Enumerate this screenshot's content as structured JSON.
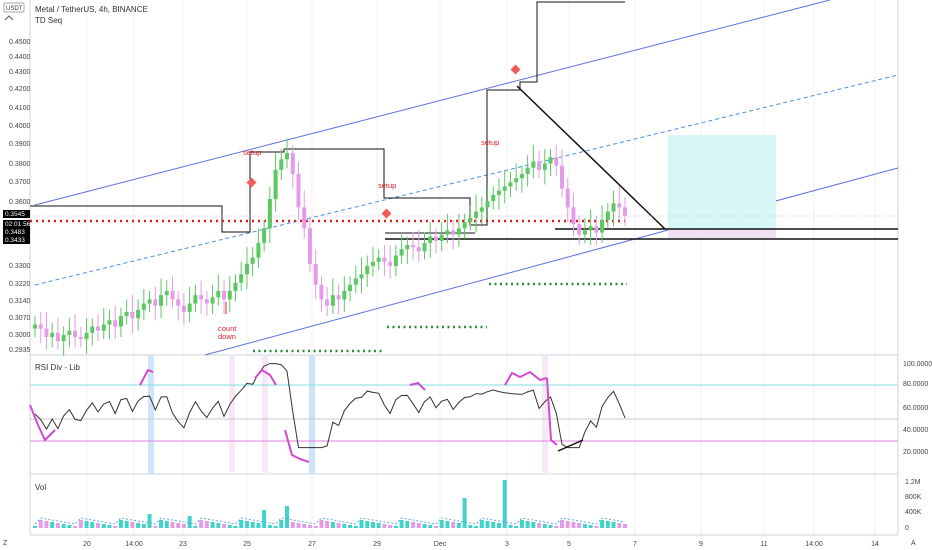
{
  "header": {
    "currency_badge": "USDT",
    "title": "Metal / TetherUS, 4h, BINANCE",
    "indicator": "TD Seq",
    "chevron_icon": "chevron-up-icon"
  },
  "price_axis": {
    "ticks": [
      "0.4500",
      "0.4400",
      "0.4300",
      "0.4200",
      "0.4100",
      "0.4000",
      "0.3900",
      "0.3800",
      "0.3700",
      "0.3600",
      "0.3300",
      "0.3220",
      "0.3140",
      "0.3070",
      "0.3000",
      "0.2935"
    ],
    "tags": [
      {
        "label": "0.3545",
        "color": "#000000"
      },
      {
        "label": "02:01:56",
        "color": "#000000"
      },
      {
        "label": "0.3483",
        "color": "#000000"
      },
      {
        "label": "0.3433",
        "color": "#000000"
      }
    ]
  },
  "rsi_pane": {
    "label": "RSI Div - Lib",
    "ticks": [
      "100.0000",
      "80.0000",
      "60.0000",
      "40.0000",
      "20.0000"
    ],
    "upper_band": 80,
    "lower_band": 30,
    "mid": 50
  },
  "vol_pane": {
    "label": "Vol",
    "ticks": [
      "1.2M",
      "800K",
      "400K",
      "0"
    ]
  },
  "time_axis": {
    "ticks": [
      "20",
      "14:00",
      "23",
      "25",
      "27",
      "29",
      "Dec",
      "3",
      "5",
      "7",
      "9",
      "11",
      "14:00",
      "14"
    ],
    "left_icon": "zoom-icon",
    "right_label": "A"
  },
  "annotations": {
    "setup_labels": [
      "setup",
      "setup",
      "setup"
    ],
    "countdown": "count down"
  },
  "chart_data": {
    "type": "candlestick",
    "symbol": "Metal / TetherUS",
    "interval": "4h",
    "exchange": "BINANCE",
    "last_price": 0.3545,
    "countdown": "02:01:56",
    "support_levels": [
      0.3483,
      0.3433
    ],
    "closes": [
      0.306,
      0.304,
      0.3,
      0.302,
      0.298,
      0.301,
      0.303,
      0.3,
      0.299,
      0.302,
      0.305,
      0.303,
      0.306,
      0.308,
      0.305,
      0.31,
      0.312,
      0.309,
      0.313,
      0.316,
      0.318,
      0.315,
      0.32,
      0.322,
      0.318,
      0.315,
      0.312,
      0.316,
      0.32,
      0.318,
      0.316,
      0.319,
      0.322,
      0.318,
      0.322,
      0.326,
      0.33,
      0.335,
      0.338,
      0.345,
      0.352,
      0.366,
      0.38,
      0.385,
      0.388,
      0.378,
      0.362,
      0.352,
      0.335,
      0.325,
      0.318,
      0.315,
      0.32,
      0.318,
      0.322,
      0.325,
      0.328,
      0.33,
      0.334,
      0.336,
      0.338,
      0.336,
      0.334,
      0.339,
      0.342,
      0.344,
      0.343,
      0.341,
      0.345,
      0.348,
      0.346,
      0.349,
      0.351,
      0.349,
      0.352,
      0.355,
      0.357,
      0.36,
      0.362,
      0.365,
      0.368,
      0.37,
      0.372,
      0.374,
      0.376,
      0.378,
      0.381,
      0.384,
      0.38,
      0.383,
      0.386,
      0.382,
      0.371,
      0.362,
      0.354,
      0.349,
      0.351,
      0.353,
      0.35,
      0.356,
      0.36,
      0.364,
      0.362,
      0.358
    ]
  }
}
